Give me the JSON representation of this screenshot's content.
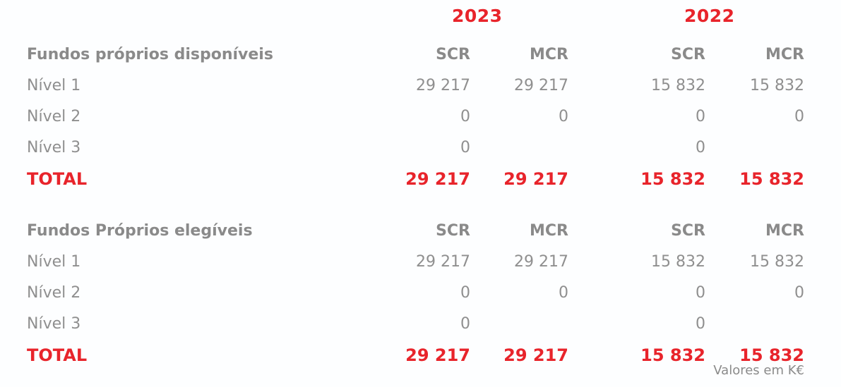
{
  "years": {
    "y1": "2023",
    "y2": "2022"
  },
  "sections": [
    {
      "title": "Fundos próprios disponíveis",
      "col_headers": [
        "SCR",
        "MCR",
        "SCR",
        "MCR"
      ],
      "rows": [
        {
          "label": "Nível 1",
          "values": [
            "29 217",
            "29 217",
            "15 832",
            "15 832"
          ]
        },
        {
          "label": "Nível 2",
          "values": [
            "0",
            "0",
            "0",
            "0"
          ]
        },
        {
          "label": "Nível 3",
          "values": [
            "0",
            "",
            "0",
            ""
          ]
        }
      ],
      "total": {
        "label": "TOTAL",
        "values": [
          "29 217",
          "29 217",
          "15 832",
          "15 832"
        ]
      }
    },
    {
      "title": "Fundos Próprios elegíveis",
      "col_headers": [
        "SCR",
        "MCR",
        "SCR",
        "MCR"
      ],
      "rows": [
        {
          "label": "Nível 1",
          "values": [
            "29 217",
            "29 217",
            "15 832",
            "15 832"
          ]
        },
        {
          "label": "Nível 2",
          "values": [
            "0",
            "0",
            "0",
            "0"
          ]
        },
        {
          "label": "Nível 3",
          "values": [
            "0",
            "",
            "0",
            ""
          ]
        }
      ],
      "total": {
        "label": "TOTAL",
        "values": [
          "29 217",
          "29 217",
          "15 832",
          "15 832"
        ]
      }
    }
  ],
  "footnote": "Valores em K€"
}
